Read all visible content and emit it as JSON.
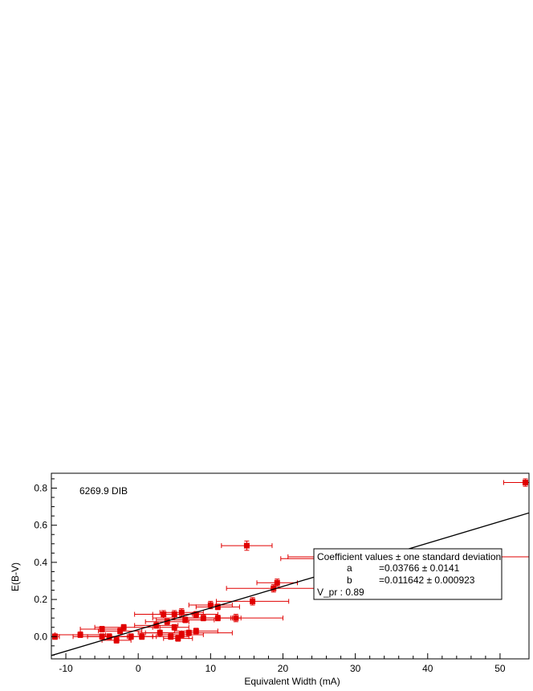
{
  "chart_data": {
    "type": "scatter",
    "title": "",
    "annotation": "6269.9 DIB",
    "xlabel": "Equivalent Width (mA)",
    "ylabel": "E(B-V)",
    "xlim": [
      -12,
      54
    ],
    "ylim": [
      -0.12,
      0.88
    ],
    "x_ticks": [
      -10,
      0,
      10,
      20,
      30,
      40,
      50
    ],
    "y_ticks": [
      0.0,
      0.2,
      0.4,
      0.6,
      0.8
    ],
    "y_tick_labels": [
      "0.0",
      "0.2",
      "0.4",
      "0.6",
      "0.8"
    ],
    "grid": false,
    "colors": {
      "points": "#e00000",
      "fit_line": "#000000"
    },
    "fit_line": {
      "a": 0.03766,
      "b": 0.011642,
      "x_range": [
        -12,
        54
      ]
    },
    "legend": {
      "placement": "bottom-right",
      "title": "Coefficient values ± one standard deviation",
      "rows": [
        {
          "name": "a",
          "value": "=0.03766 ± 0.0141"
        },
        {
          "name": "b",
          "value": "=0.011642 ± 0.000923"
        }
      ],
      "footer": "V_pr : 0.89"
    },
    "points": [
      {
        "x": -11.5,
        "y": 0.0,
        "xerr": 0.6,
        "yerr": 0.015
      },
      {
        "x": -8.0,
        "y": 0.01,
        "xerr": 3.5,
        "yerr": 0.015
      },
      {
        "x": -5.0,
        "y": 0.04,
        "xerr": 3.0,
        "yerr": 0.015
      },
      {
        "x": -5.0,
        "y": 0.0,
        "xerr": 4.0,
        "yerr": 0.015
      },
      {
        "x": -4.0,
        "y": 0.0,
        "xerr": 3.0,
        "yerr": 0.015
      },
      {
        "x": -3.0,
        "y": -0.02,
        "xerr": 2.0,
        "yerr": 0.015
      },
      {
        "x": -2.5,
        "y": 0.03,
        "xerr": 3.0,
        "yerr": 0.015
      },
      {
        "x": -2.0,
        "y": 0.05,
        "xerr": 4.0,
        "yerr": 0.015
      },
      {
        "x": -1.0,
        "y": 0.0,
        "xerr": 3.0,
        "yerr": 0.015
      },
      {
        "x": 0.5,
        "y": 0.0,
        "xerr": 2.0,
        "yerr": 0.015
      },
      {
        "x": 2.5,
        "y": 0.06,
        "xerr": 3.0,
        "yerr": 0.015
      },
      {
        "x": 3.0,
        "y": 0.02,
        "xerr": 3.0,
        "yerr": 0.015
      },
      {
        "x": 3.5,
        "y": 0.12,
        "xerr": 4.0,
        "yerr": 0.02
      },
      {
        "x": 4.0,
        "y": 0.08,
        "xerr": 3.0,
        "yerr": 0.015
      },
      {
        "x": 4.5,
        "y": 0.0,
        "xerr": 2.5,
        "yerr": 0.015
      },
      {
        "x": 5.0,
        "y": 0.12,
        "xerr": 3.0,
        "yerr": 0.02
      },
      {
        "x": 5.0,
        "y": 0.05,
        "xerr": 2.0,
        "yerr": 0.015
      },
      {
        "x": 5.5,
        "y": -0.01,
        "xerr": 2.0,
        "yerr": 0.015
      },
      {
        "x": 6.0,
        "y": 0.01,
        "xerr": 3.0,
        "yerr": 0.015
      },
      {
        "x": 6.0,
        "y": 0.13,
        "xerr": 3.0,
        "yerr": 0.02
      },
      {
        "x": 6.5,
        "y": 0.09,
        "xerr": 4.0,
        "yerr": 0.015
      },
      {
        "x": 7.0,
        "y": 0.02,
        "xerr": 6.0,
        "yerr": 0.015
      },
      {
        "x": 8.0,
        "y": 0.12,
        "xerr": 3.0,
        "yerr": 0.015
      },
      {
        "x": 8.0,
        "y": 0.03,
        "xerr": 3.0,
        "yerr": 0.015
      },
      {
        "x": 9.0,
        "y": 0.1,
        "xerr": 4.0,
        "yerr": 0.015
      },
      {
        "x": 10.0,
        "y": 0.17,
        "xerr": 3.0,
        "yerr": 0.02
      },
      {
        "x": 11.0,
        "y": 0.16,
        "xerr": 3.0,
        "yerr": 0.015
      },
      {
        "x": 11.0,
        "y": 0.1,
        "xerr": 9.0,
        "yerr": 0.015
      },
      {
        "x": 13.5,
        "y": 0.1,
        "xerr": 0.7,
        "yerr": 0.02
      },
      {
        "x": 15.0,
        "y": 0.49,
        "xerr": 3.5,
        "yerr": 0.025
      },
      {
        "x": 15.8,
        "y": 0.19,
        "xerr": 5.0,
        "yerr": 0.02
      },
      {
        "x": 18.7,
        "y": 0.26,
        "xerr": 6.5,
        "yerr": 0.02
      },
      {
        "x": 19.2,
        "y": 0.29,
        "xerr": 2.8,
        "yerr": 0.02
      },
      {
        "x": 24.7,
        "y": 0.43,
        "xerr": 4.0,
        "yerr": 0.02
      },
      {
        "x": 24.7,
        "y": 0.42,
        "xerr": 5.0,
        "yerr": 0.02
      },
      {
        "x": 40.0,
        "y": 0.32,
        "xerr": 5.0,
        "yerr": 0.02
      },
      {
        "x": 44.0,
        "y": 0.43,
        "xerr": 13.0,
        "yerr": 0.02
      },
      {
        "x": 53.5,
        "y": 0.83,
        "xerr": 3.0,
        "yerr": 0.02
      }
    ]
  }
}
